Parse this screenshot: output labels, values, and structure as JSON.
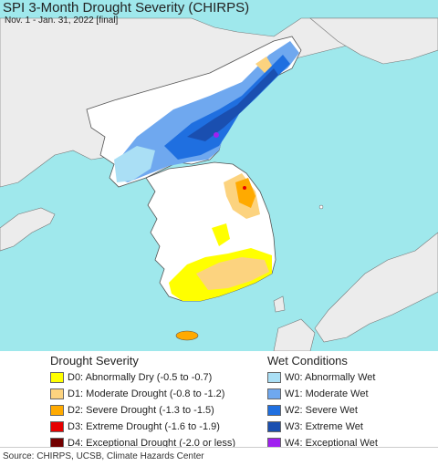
{
  "header": {
    "title": "SPI 3-Month Drought Severity (CHIRPS)",
    "subtitle": "Nov. 1 - Jan. 31, 2022 [final]"
  },
  "map": {
    "sea_color": "#9fe8ec",
    "land_color": "#ececec",
    "korea_base_color": "#ffffff"
  },
  "legend": {
    "drought": {
      "title": "Drought Severity",
      "items": [
        {
          "code": "D0",
          "label": "D0: Abnormally Dry (-0.5 to -0.7)",
          "color": "#ffff00"
        },
        {
          "code": "D1",
          "label": "D1: Moderate Drought (-0.8 to -1.2)",
          "color": "#fcd37f"
        },
        {
          "code": "D2",
          "label": "D2: Severe Drought (-1.3 to -1.5)",
          "color": "#ffaa00"
        },
        {
          "code": "D3",
          "label": "D3: Extreme Drought (-1.6 to -1.9)",
          "color": "#e60000"
        },
        {
          "code": "D4",
          "label": "D4: Exceptional Drought (-2.0 or less)",
          "color": "#730000"
        }
      ]
    },
    "wet": {
      "title": "Wet Conditions",
      "items": [
        {
          "code": "W0",
          "label": "W0: Abnormally Wet",
          "color": "#aadff5"
        },
        {
          "code": "W1",
          "label": "W1: Moderate Wet",
          "color": "#6fa8ef"
        },
        {
          "code": "W2",
          "label": "W2: Severe Wet",
          "color": "#1f6fe0"
        },
        {
          "code": "W3",
          "label": "W3: Extreme Wet",
          "color": "#1a4fb0"
        },
        {
          "code": "W4",
          "label": "W4: Exceptional Wet",
          "color": "#a020f0"
        }
      ]
    }
  },
  "footer": {
    "source": "Source: CHIRPS, UCSB, Climate Hazards Center"
  }
}
